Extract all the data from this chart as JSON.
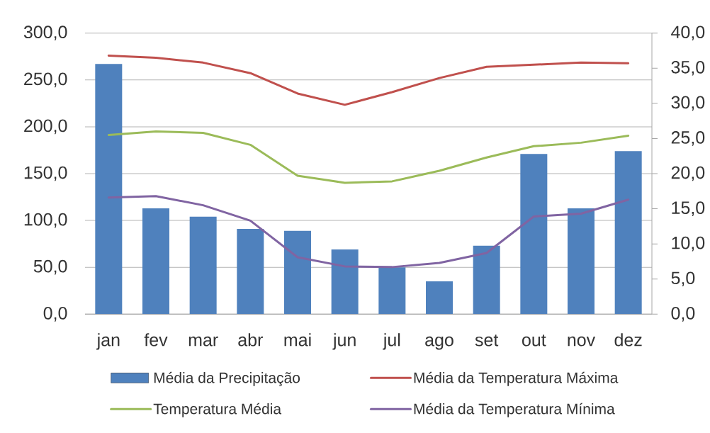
{
  "chart_data": {
    "type": "bar",
    "categories": [
      "jan",
      "fev",
      "mar",
      "abr",
      "mai",
      "jun",
      "jul",
      "ago",
      "set",
      "out",
      "nov",
      "dez"
    ],
    "series": [
      {
        "name": "Média da Precipitação",
        "color": "#4f81bd",
        "values": [
          267,
          113,
          104,
          91,
          89,
          69,
          50,
          35,
          73,
          171,
          113,
          174
        ]
      },
      {
        "name": "Média da Temperatura Máxima",
        "type": "line",
        "axis": "y2",
        "color": "#c0504d",
        "values": [
          36.8,
          36.5,
          35.8,
          34.3,
          31.4,
          29.8,
          31.6,
          33.6,
          35.2,
          35.5,
          35.8,
          35.7
        ]
      },
      {
        "name": "Temperatura Média",
        "type": "line",
        "axis": "y2",
        "color": "#9bbb59",
        "values": [
          25.5,
          26.0,
          25.8,
          24.1,
          19.7,
          18.7,
          18.9,
          20.4,
          22.3,
          23.9,
          24.4,
          25.4
        ]
      },
      {
        "name": "Média da Temperatura Mínima",
        "type": "line",
        "axis": "y2",
        "color": "#8064a2",
        "values": [
          16.6,
          16.8,
          15.5,
          13.3,
          8.1,
          6.8,
          6.7,
          7.3,
          8.7,
          13.9,
          14.3,
          16.3
        ]
      }
    ],
    "ylim": [
      0,
      300
    ],
    "yticks": [
      {
        "value": 0,
        "label": "0,0"
      },
      {
        "value": 50,
        "label": "50,0"
      },
      {
        "value": 100,
        "label": "100,0"
      },
      {
        "value": 150,
        "label": "150,0"
      },
      {
        "value": 200,
        "label": "200,0"
      },
      {
        "value": 250,
        "label": "250,0"
      },
      {
        "value": 300,
        "label": "300,0"
      }
    ],
    "y2lim": [
      0,
      40
    ],
    "y2ticks": [
      {
        "value": 0,
        "label": "0,0"
      },
      {
        "value": 5,
        "label": "5,0"
      },
      {
        "value": 10,
        "label": "10,0"
      },
      {
        "value": 15,
        "label": "15,0"
      },
      {
        "value": 20,
        "label": "20,0"
      },
      {
        "value": 25,
        "label": "25,0"
      },
      {
        "value": 30,
        "label": "30,0"
      },
      {
        "value": 35,
        "label": "35,0"
      },
      {
        "value": 40,
        "label": "40,0"
      }
    ],
    "grid": "y",
    "legend": "bottom",
    "marker": "none",
    "line_style": "solid"
  }
}
